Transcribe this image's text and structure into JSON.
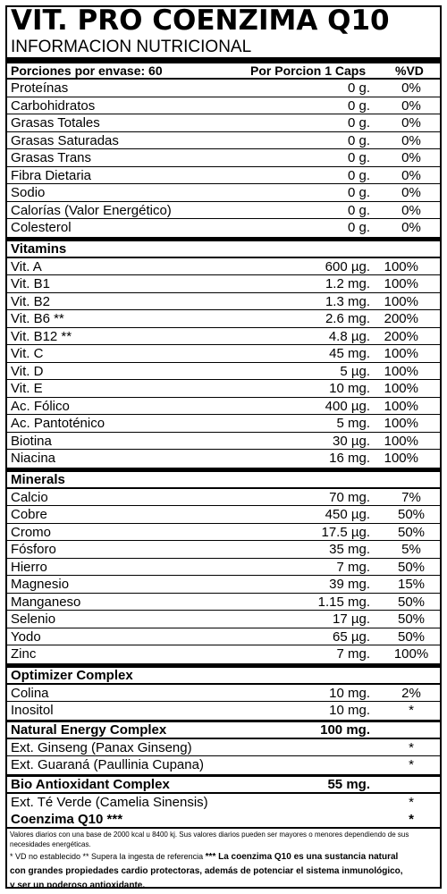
{
  "title": "VIT. PRO COENZIMA Q10",
  "subtitle": "INFORMACION NUTRICIONAL",
  "header": {
    "servings": "Porciones por envase: 60",
    "per": "Por Porcion 1 Caps",
    "dv": "%VD"
  },
  "basics": [
    {
      "name": "Proteínas",
      "amount": "0 g.",
      "dv": "0%"
    },
    {
      "name": "Carbohidratos",
      "amount": "0 g.",
      "dv": "0%"
    },
    {
      "name": "Grasas Totales",
      "amount": "0 g.",
      "dv": "0%"
    },
    {
      "name": "Grasas Saturadas",
      "amount": "0 g.",
      "dv": "0%"
    },
    {
      "name": "Grasas Trans",
      "amount": "0 g.",
      "dv": "0%"
    },
    {
      "name": "Fibra Dietaria",
      "amount": "0 g.",
      "dv": "0%"
    },
    {
      "name": "Sodio",
      "amount": "0 g.",
      "dv": "0%"
    },
    {
      "name": "Calorías (Valor Energético)",
      "amount": "0 g.",
      "dv": "0%"
    },
    {
      "name": "Colesterol",
      "amount": "0 g.",
      "dv": "0%"
    }
  ],
  "vitamins_title": "Vitamins",
  "vitamins": [
    {
      "name": "Vit. A",
      "amount": "600 µg.",
      "dv": "100%"
    },
    {
      "name": "Vit. B1",
      "amount": "1.2 mg.",
      "dv": "100%"
    },
    {
      "name": "Vit. B2",
      "amount": "1.3 mg.",
      "dv": "100%"
    },
    {
      "name": "Vit. B6 **",
      "amount": "2.6 mg.",
      "dv": "200%"
    },
    {
      "name": "Vit. B12 **",
      "amount": "4.8 µg.",
      "dv": "200%"
    },
    {
      "name": "Vit. C",
      "amount": "45 mg.",
      "dv": "100%"
    },
    {
      "name": "Vit. D",
      "amount": "5 µg.",
      "dv": "100%"
    },
    {
      "name": "Vit. E",
      "amount": "10 mg.",
      "dv": "100%"
    },
    {
      "name": "Ac. Fólico",
      "amount": "400 µg.",
      "dv": "100%"
    },
    {
      "name": "Ac. Pantoténico",
      "amount": "5 mg.",
      "dv": "100%"
    },
    {
      "name": "Biotina",
      "amount": "30 µg.",
      "dv": "100%"
    },
    {
      "name": "Niacina",
      "amount": "16 mg.",
      "dv": "100%"
    }
  ],
  "minerals_title": "Minerals",
  "minerals": [
    {
      "name": "Calcio",
      "amount": "70 mg.",
      "dv": "7%"
    },
    {
      "name": "Cobre",
      "amount": "450 µg.",
      "dv": "50%"
    },
    {
      "name": "Cromo",
      "amount": "17.5 µg.",
      "dv": "50%"
    },
    {
      "name": "Fósforo",
      "amount": "35 mg.",
      "dv": "5%"
    },
    {
      "name": "Hierro",
      "amount": "7 mg.",
      "dv": "50%"
    },
    {
      "name": "Magnesio",
      "amount": "39 mg.",
      "dv": "15%"
    },
    {
      "name": "Manganeso",
      "amount": "1.15 mg.",
      "dv": "50%"
    },
    {
      "name": "Selenio",
      "amount": "17 µg.",
      "dv": "50%"
    },
    {
      "name": "Yodo",
      "amount": "65 µg.",
      "dv": "50%"
    },
    {
      "name": "Zinc",
      "amount": "7 mg.",
      "dv": "100%"
    }
  ],
  "optimizer": {
    "title": "Optimizer Complex",
    "items": [
      {
        "name": "Colina",
        "amount": "10 mg.",
        "dv": "2%"
      },
      {
        "name": "Inositol",
        "amount": "10 mg.",
        "dv": "*"
      }
    ]
  },
  "energy": {
    "title": "Natural Energy Complex",
    "amount": "100 mg.",
    "items": [
      {
        "name": "Ext. Ginseng (Panax Ginseng)",
        "amount": "",
        "dv": "*"
      },
      {
        "name": "Ext. Guaraná (Paullinia Cupana)",
        "amount": "",
        "dv": "*"
      }
    ]
  },
  "bio": {
    "title": "Bio Antioxidant Complex",
    "amount": "55 mg.",
    "items": [
      {
        "name": "Ext. Té Verde (Camelia Sinensis)",
        "amount": "",
        "dv": "*"
      }
    ]
  },
  "coq10": {
    "name": "Coenzima Q10 ***",
    "dv": "*"
  },
  "footer": {
    "line1": "Valores diarios con una base de 2000 kcal u 8400 kj. Sus valores diarios pueden ser mayores o menores dependiendo de sus necesidades energéticas.",
    "line2a": "* VD no establecido ** Supera la ingesta de referencia",
    "line2b": "*** La coenzima Q10 es una sustancia natural",
    "line3": "con grandes propiedades cardio protectoras, además de potenciar el sistema inmunológico,",
    "line4": "y ser un poderoso antioxidante."
  }
}
